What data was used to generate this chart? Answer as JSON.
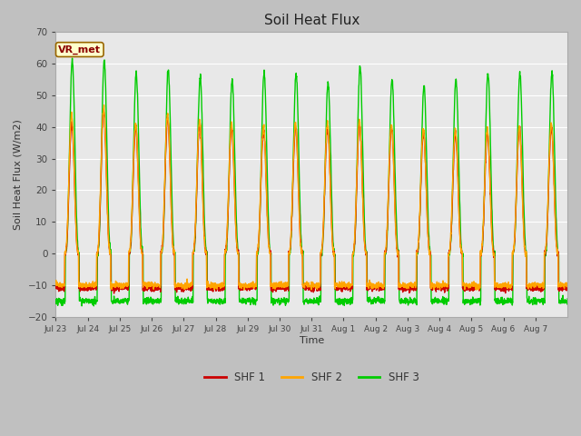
{
  "title": "Soil Heat Flux",
  "ylabel": "Soil Heat Flux (W/m2)",
  "xlabel": "Time",
  "ylim": [
    -20,
    70
  ],
  "fig_bg_color": "#c0c0c0",
  "plot_bg_color": "#e0e0e0",
  "plot_inner_bg": "#e8e8e8",
  "legend_labels": [
    "SHF 1",
    "SHF 2",
    "SHF 3"
  ],
  "legend_colors": [
    "#cc0000",
    "#ffa500",
    "#00cc00"
  ],
  "annotation_text": "VR_met",
  "annotation_bg": "#ffffcc",
  "annotation_border": "#996600",
  "x_tick_labels": [
    "Jul 23",
    "Jul 24",
    "Jul 25",
    "Jul 26",
    "Jul 27",
    "Jul 28",
    "Jul 29",
    "Jul 30",
    "Jul 31",
    "Aug 1",
    "Aug 2",
    "Aug 3",
    "Aug 4",
    "Aug 5",
    "Aug 6",
    "Aug 7"
  ],
  "n_days": 16,
  "grid_color": "#ffffff",
  "line_width": 1.0
}
